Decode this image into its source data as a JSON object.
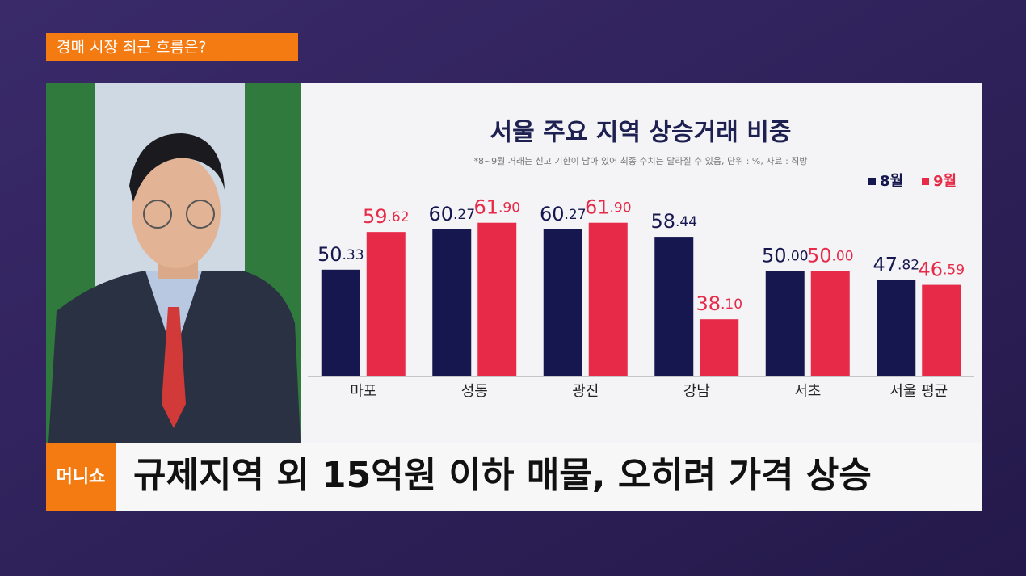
{
  "screen": {
    "topic_tag": "경매 시장 최근 흐름은?",
    "logo": "머니쇼",
    "headline": "규제지역 외 15억원 이하 매물, 오히려 가격 상승"
  },
  "chart_data": {
    "type": "bar",
    "title": "서울 주요 지역 상승거래 비중",
    "subtitle": "*8~9월 거래는 신고 기한이 남아 있어 최종 수치는 달라질 수 있음, 단위 : %,  자료 : 직방",
    "categories": [
      "마포",
      "성동",
      "광진",
      "강남",
      "서초",
      "서울 평균"
    ],
    "series": [
      {
        "name": "8월",
        "color": "#16174f",
        "values": [
          50.33,
          60.27,
          60.27,
          58.44,
          50.0,
          47.82
        ],
        "value_labels": [
          "50.33",
          "60.27",
          "60.27",
          "58.44",
          "50.00",
          "47.82"
        ]
      },
      {
        "name": "9월",
        "color": "#e62a48",
        "values": [
          59.62,
          61.9,
          61.9,
          38.1,
          50.0,
          46.59
        ],
        "value_labels": [
          "59.62",
          "61.90",
          "61.90",
          "38.10",
          "50.00",
          "46.59"
        ]
      }
    ],
    "ylim": [
      24,
      72
    ],
    "legend": "top-right"
  }
}
